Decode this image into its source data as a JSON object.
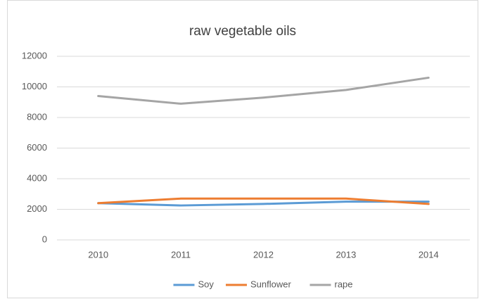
{
  "chart_data": {
    "type": "line",
    "title": "raw vegetable oils",
    "categories": [
      "2010",
      "2011",
      "2012",
      "2013",
      "2014"
    ],
    "series": [
      {
        "name": "Soy",
        "color": "#5b9bd5",
        "values": [
          2400,
          2250,
          2350,
          2500,
          2500
        ]
      },
      {
        "name": "Sunflower",
        "color": "#ed7d31",
        "values": [
          2400,
          2700,
          2700,
          2700,
          2350
        ]
      },
      {
        "name": "rape",
        "color": "#a5a5a5",
        "values": [
          9400,
          8900,
          9300,
          9800,
          10600
        ]
      }
    ],
    "ylim": [
      0,
      12000
    ],
    "yticks": [
      0,
      2000,
      4000,
      6000,
      8000,
      10000,
      12000
    ],
    "grid": true,
    "legend": "bottom"
  }
}
